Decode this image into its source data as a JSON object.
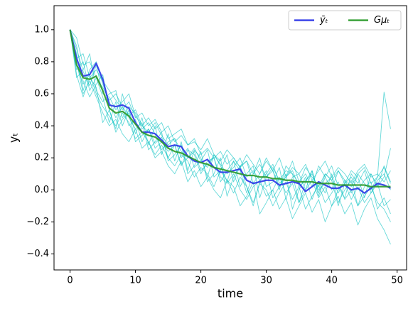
{
  "chart_data": {
    "type": "line",
    "xlabel": "time",
    "ylabel": "yₜ",
    "x": [
      0,
      1,
      2,
      3,
      4,
      5,
      6,
      7,
      8,
      9,
      10,
      11,
      12,
      13,
      14,
      15,
      16,
      17,
      18,
      19,
      20,
      21,
      22,
      23,
      24,
      25,
      26,
      27,
      28,
      29,
      30,
      31,
      32,
      33,
      34,
      35,
      36,
      37,
      38,
      39,
      40,
      41,
      42,
      43,
      44,
      45,
      46,
      47,
      48,
      49
    ],
    "xlim": [
      -2.45,
      51.45
    ],
    "xticks": [
      0,
      10,
      20,
      30,
      40,
      50
    ],
    "ylim": [
      -0.5,
      1.15
    ],
    "yticks": [
      {
        "value": -0.4,
        "label": "−0.4"
      },
      {
        "value": -0.2,
        "label": "−0.2"
      },
      {
        "value": 0.0,
        "label": "0.0"
      },
      {
        "value": 0.2,
        "label": "0.2"
      },
      {
        "value": 0.4,
        "label": "0.4"
      },
      {
        "value": 0.6,
        "label": "0.6"
      },
      {
        "value": 0.8,
        "label": "0.8"
      },
      {
        "value": 1.0,
        "label": "1.0"
      }
    ],
    "legend": "upper right",
    "series": [
      {
        "color": "#00bfbf",
        "opacity": 0.6,
        "width": 0.9,
        "values": [
          1.0,
          0.85,
          0.62,
          0.75,
          0.8,
          0.66,
          0.55,
          0.45,
          0.52,
          0.4,
          0.44,
          0.3,
          0.38,
          0.29,
          0.33,
          0.2,
          0.28,
          0.15,
          0.25,
          0.22,
          0.1,
          0.18,
          0.2,
          0.05,
          0.12,
          0.18,
          0.02,
          0.1,
          0.15,
          -0.05,
          0.08,
          0.12,
          0.0,
          0.15,
          0.1,
          -0.08,
          0.05,
          0.12,
          -0.02,
          0.1,
          0.06,
          -0.1,
          0.04,
          0.12,
          0.08,
          -0.05,
          0.1,
          0.02,
          0.15,
          0.05
        ]
      },
      {
        "color": "#00bfbf",
        "opacity": 0.6,
        "width": 0.9,
        "values": [
          1.0,
          0.75,
          0.8,
          0.62,
          0.7,
          0.58,
          0.42,
          0.55,
          0.4,
          0.5,
          0.35,
          0.45,
          0.28,
          0.4,
          0.22,
          0.35,
          0.18,
          0.3,
          0.12,
          0.25,
          0.2,
          0.08,
          0.22,
          0.15,
          0.05,
          0.18,
          0.12,
          -0.02,
          0.1,
          0.2,
          0.02,
          0.05,
          0.14,
          -0.06,
          0.08,
          0.1,
          0.0,
          0.12,
          -0.04,
          0.08,
          0.15,
          0.02,
          -0.05,
          0.1,
          0.04,
          0.12,
          -0.02,
          0.06,
          0.1,
          0.0
        ]
      },
      {
        "color": "#00bfbf",
        "opacity": 0.6,
        "width": 0.9,
        "values": [
          1.0,
          0.9,
          0.68,
          0.58,
          0.66,
          0.72,
          0.5,
          0.38,
          0.6,
          0.45,
          0.38,
          0.42,
          0.25,
          0.3,
          0.36,
          0.18,
          0.22,
          0.28,
          0.1,
          0.15,
          0.24,
          0.05,
          0.1,
          0.2,
          -0.04,
          0.08,
          0.15,
          0.02,
          -0.1,
          0.05,
          0.12,
          -0.05,
          0.02,
          0.1,
          -0.12,
          0.0,
          0.08,
          -0.06,
          0.05,
          -0.02,
          0.1,
          -0.08,
          0.0,
          0.06,
          -0.1,
          0.02,
          0.05,
          -0.12,
          -0.05,
          -0.15
        ]
      },
      {
        "color": "#00bfbf",
        "opacity": 0.6,
        "width": 0.9,
        "values": [
          1.0,
          0.7,
          0.75,
          0.85,
          0.62,
          0.55,
          0.6,
          0.62,
          0.45,
          0.52,
          0.48,
          0.38,
          0.42,
          0.35,
          0.25,
          0.3,
          0.32,
          0.2,
          0.26,
          0.14,
          0.18,
          0.25,
          0.08,
          0.12,
          0.22,
          0.05,
          0.15,
          0.18,
          0.04,
          0.1,
          0.2,
          0.12,
          0.02,
          0.08,
          0.18,
          0.05,
          0.1,
          0.02,
          0.15,
          0.08,
          0.0,
          0.12,
          0.06,
          -0.02,
          0.1,
          0.14,
          0.04,
          0.08,
          0.61,
          0.38
        ]
      },
      {
        "color": "#00bfbf",
        "opacity": 0.6,
        "width": 0.9,
        "values": [
          1.0,
          0.8,
          0.6,
          0.68,
          0.58,
          0.48,
          0.4,
          0.44,
          0.35,
          0.3,
          0.38,
          0.26,
          0.3,
          0.2,
          0.24,
          0.15,
          0.1,
          0.18,
          0.05,
          0.12,
          0.02,
          0.08,
          0.0,
          -0.05,
          0.06,
          0.02,
          -0.1,
          -0.04,
          0.05,
          -0.15,
          -0.08,
          0.0,
          -0.12,
          -0.05,
          -0.18,
          -0.1,
          -0.02,
          -0.14,
          -0.06,
          -0.2,
          -0.1,
          -0.04,
          -0.15,
          -0.08,
          -0.22,
          -0.12,
          -0.05,
          -0.18,
          -0.25,
          -0.34
        ]
      },
      {
        "color": "#00bfbf",
        "opacity": 0.6,
        "width": 0.9,
        "values": [
          1.0,
          0.88,
          0.74,
          0.65,
          0.78,
          0.6,
          0.58,
          0.5,
          0.55,
          0.6,
          0.46,
          0.4,
          0.45,
          0.38,
          0.42,
          0.32,
          0.35,
          0.38,
          0.28,
          0.3,
          0.25,
          0.32,
          0.22,
          0.18,
          0.25,
          0.2,
          0.14,
          0.22,
          0.16,
          0.1,
          0.18,
          0.12,
          0.2,
          0.08,
          0.14,
          0.1,
          0.16,
          0.06,
          0.12,
          0.18,
          0.08,
          0.14,
          0.1,
          0.04,
          0.12,
          0.16,
          0.08,
          0.1,
          0.05,
          0.12
        ]
      },
      {
        "color": "#00bfbf",
        "opacity": 0.6,
        "width": 0.9,
        "values": [
          1.0,
          0.78,
          0.66,
          0.72,
          0.6,
          0.52,
          0.46,
          0.4,
          0.48,
          0.42,
          0.32,
          0.36,
          0.3,
          0.22,
          0.28,
          0.2,
          0.15,
          0.22,
          0.18,
          0.08,
          0.14,
          0.1,
          0.02,
          0.12,
          0.06,
          -0.02,
          0.08,
          0.02,
          -0.08,
          0.04,
          0.0,
          -0.1,
          -0.02,
          0.05,
          -0.06,
          0.02,
          -0.12,
          -0.04,
          0.03,
          -0.08,
          -0.02,
          0.05,
          -0.06,
          0.0,
          -0.1,
          -0.04,
          0.02,
          -0.08,
          -0.12,
          -0.2
        ]
      },
      {
        "color": "#00bfbf",
        "opacity": 0.6,
        "width": 0.9,
        "values": [
          1.0,
          0.82,
          0.85,
          0.7,
          0.75,
          0.68,
          0.62,
          0.56,
          0.5,
          0.55,
          0.45,
          0.48,
          0.4,
          0.44,
          0.36,
          0.4,
          0.3,
          0.34,
          0.28,
          0.32,
          0.22,
          0.26,
          0.2,
          0.24,
          0.16,
          0.2,
          0.14,
          0.18,
          0.1,
          0.16,
          0.08,
          0.14,
          0.06,
          0.12,
          0.1,
          0.04,
          0.14,
          0.08,
          0.02,
          0.1,
          0.06,
          0.12,
          0.04,
          0.08,
          0.0,
          0.06,
          0.1,
          0.02,
          0.08,
          0.26
        ]
      },
      {
        "color": "#00bfbf",
        "opacity": 0.6,
        "width": 0.9,
        "values": [
          1.0,
          0.72,
          0.58,
          0.7,
          0.64,
          0.42,
          0.5,
          0.36,
          0.44,
          0.48,
          0.3,
          0.34,
          0.38,
          0.26,
          0.3,
          0.24,
          0.28,
          0.16,
          0.2,
          0.24,
          0.12,
          0.16,
          0.2,
          0.08,
          0.04,
          0.1,
          0.0,
          -0.06,
          0.02,
          0.06,
          -0.04,
          0.0,
          0.08,
          -0.02,
          0.04,
          -0.08,
          0.0,
          0.06,
          -0.05,
          0.02,
          -0.1,
          0.0,
          0.04,
          -0.06,
          0.02,
          -0.08,
          -0.02,
          0.04,
          -0.1,
          -0.06
        ]
      },
      {
        "color": "#00bfbf",
        "opacity": 0.6,
        "width": 0.9,
        "values": [
          1.0,
          0.95,
          0.78,
          0.8,
          0.7,
          0.64,
          0.56,
          0.6,
          0.52,
          0.46,
          0.5,
          0.4,
          0.36,
          0.42,
          0.34,
          0.28,
          0.32,
          0.24,
          0.2,
          0.26,
          0.18,
          0.14,
          0.22,
          0.16,
          0.1,
          0.14,
          0.2,
          0.08,
          0.12,
          0.06,
          0.1,
          0.16,
          0.04,
          0.08,
          0.12,
          0.02,
          0.06,
          0.1,
          0.0,
          0.04,
          0.08,
          -0.02,
          0.06,
          0.02,
          0.1,
          0.04,
          0.0,
          0.08,
          0.14,
          0.04
        ]
      },
      {
        "name": "ȳₜ",
        "color": "#2b35e8",
        "opacity": 0.9,
        "width": 2.2,
        "values": [
          1.0,
          0.82,
          0.71,
          0.72,
          0.79,
          0.69,
          0.53,
          0.52,
          0.53,
          0.51,
          0.42,
          0.36,
          0.36,
          0.35,
          0.31,
          0.27,
          0.28,
          0.27,
          0.21,
          0.18,
          0.17,
          0.19,
          0.14,
          0.11,
          0.11,
          0.12,
          0.13,
          0.06,
          0.04,
          0.05,
          0.06,
          0.06,
          0.03,
          0.04,
          0.05,
          0.04,
          -0.01,
          0.02,
          0.05,
          0.03,
          0.01,
          0.01,
          0.03,
          0.0,
          0.01,
          -0.02,
          0.01,
          0.04,
          0.03,
          0.01
        ]
      },
      {
        "name": "Gμₜ",
        "color": "#2a9a2a",
        "opacity": 0.9,
        "width": 2.2,
        "values": [
          1.0,
          0.78,
          0.7,
          0.69,
          0.71,
          0.62,
          0.51,
          0.48,
          0.49,
          0.46,
          0.41,
          0.36,
          0.34,
          0.33,
          0.3,
          0.26,
          0.24,
          0.23,
          0.21,
          0.19,
          0.17,
          0.16,
          0.14,
          0.13,
          0.12,
          0.11,
          0.1,
          0.09,
          0.09,
          0.08,
          0.08,
          0.07,
          0.07,
          0.06,
          0.06,
          0.05,
          0.05,
          0.05,
          0.04,
          0.04,
          0.04,
          0.03,
          0.03,
          0.03,
          0.03,
          0.03,
          0.02,
          0.02,
          0.02,
          0.02
        ]
      }
    ]
  }
}
